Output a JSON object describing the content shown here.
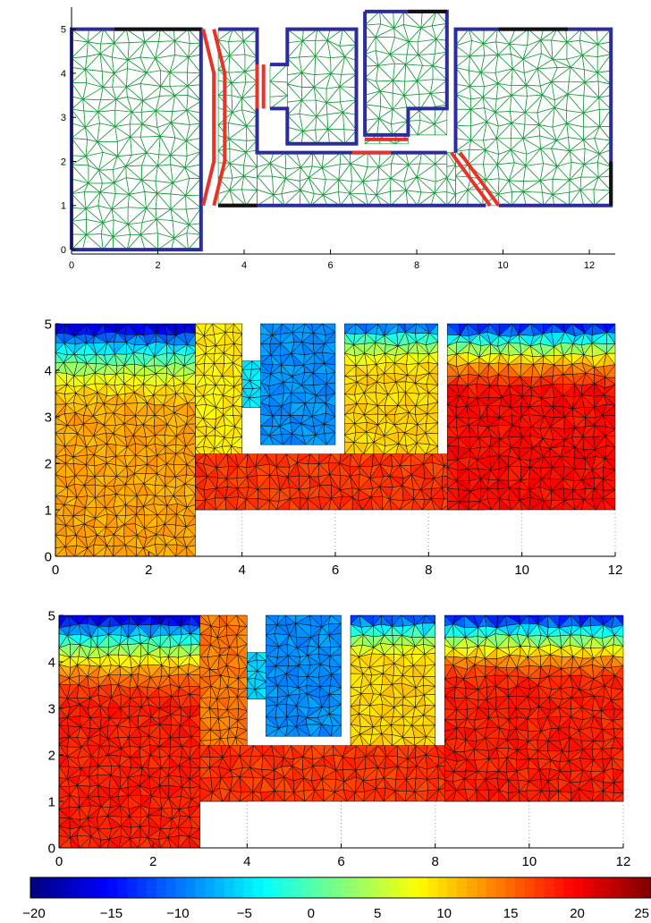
{
  "chart_data": [
    {
      "type": "diagram",
      "panel": "mesh",
      "xlim": [
        0,
        12.6
      ],
      "ylim": [
        -0.1,
        5.5
      ],
      "xticks": [
        "0",
        "2",
        "4",
        "6",
        "8",
        "10",
        "12"
      ],
      "xtick_values": [
        0,
        2,
        4,
        6,
        8,
        10,
        12
      ],
      "yticks": [
        "0",
        "1",
        "2",
        "3",
        "4",
        "5"
      ],
      "ytick_values": [
        0,
        1,
        2,
        3,
        4,
        5
      ],
      "mesh_color": "#1a9a3c",
      "wall_color": "#2c2d9c",
      "interface_color": "#e8332a",
      "boundary_color": "#111111",
      "grid": false
    },
    {
      "type": "heatmap",
      "panel": "temperature-field-1",
      "xlim": [
        0,
        12
      ],
      "ylim": [
        0,
        5
      ],
      "xticks": [
        "0",
        "2",
        "4",
        "6",
        "8",
        "10",
        "12"
      ],
      "xtick_values": [
        0,
        2,
        4,
        6,
        8,
        10,
        12
      ],
      "yticks": [
        "0",
        "1",
        "2",
        "3",
        "4",
        "5"
      ],
      "ytick_values": [
        0,
        1,
        2,
        3,
        4,
        5
      ],
      "regions": [
        {
          "x": [
            0,
            3
          ],
          "y": [
            0,
            5
          ],
          "value": 12,
          "top_value": -18
        },
        {
          "x": [
            3,
            4
          ],
          "y": [
            1,
            5
          ],
          "value": 9
        },
        {
          "x": [
            3,
            9.2
          ],
          "y": [
            1,
            2.2
          ],
          "value": 17
        },
        {
          "x": [
            4,
            4.4
          ],
          "y": [
            3.2,
            4.2
          ],
          "value": -4
        },
        {
          "x": [
            4.4,
            6
          ],
          "y": [
            2.4,
            5
          ],
          "value": -8
        },
        {
          "x": [
            6.2,
            8.2
          ],
          "y": [
            2.2,
            5
          ],
          "value": 10,
          "top_value": -12
        },
        {
          "x": [
            8.4,
            12
          ],
          "y": [
            1,
            5
          ],
          "value": 19,
          "top_value": -16
        }
      ]
    },
    {
      "type": "heatmap",
      "panel": "temperature-field-2",
      "xlim": [
        0,
        12
      ],
      "ylim": [
        0,
        5
      ],
      "xticks": [
        "0",
        "2",
        "4",
        "6",
        "8",
        "10",
        "12"
      ],
      "xtick_values": [
        0,
        2,
        4,
        6,
        8,
        10,
        12
      ],
      "yticks": [
        "0",
        "1",
        "2",
        "3",
        "4",
        "5"
      ],
      "ytick_values": [
        0,
        1,
        2,
        3,
        4,
        5
      ],
      "regions": [
        {
          "x": [
            0,
            3
          ],
          "y": [
            0,
            5
          ],
          "value": 18,
          "top_value": -18
        },
        {
          "x": [
            3,
            4
          ],
          "y": [
            1,
            5
          ],
          "value": 14
        },
        {
          "x": [
            3,
            12
          ],
          "y": [
            1,
            2.2
          ],
          "value": 17
        },
        {
          "x": [
            4,
            4.4
          ],
          "y": [
            3.2,
            4.2
          ],
          "value": -5
        },
        {
          "x": [
            4.4,
            6
          ],
          "y": [
            2.4,
            5
          ],
          "value": -8
        },
        {
          "x": [
            6.2,
            8
          ],
          "y": [
            2.2,
            5
          ],
          "value": 10,
          "top_value": -14
        },
        {
          "x": [
            8.2,
            12
          ],
          "y": [
            1,
            5
          ],
          "value": 18,
          "top_value": -16
        }
      ]
    },
    {
      "type": "colorbar",
      "range": [
        -20,
        25
      ],
      "ticks": [
        "−20",
        "−15",
        "−10",
        "−5",
        "0",
        "5",
        "10",
        "15",
        "20",
        "25"
      ],
      "tick_values": [
        -20,
        -15,
        -10,
        -5,
        0,
        5,
        10,
        15,
        20,
        25
      ],
      "colormap": "jet"
    }
  ]
}
